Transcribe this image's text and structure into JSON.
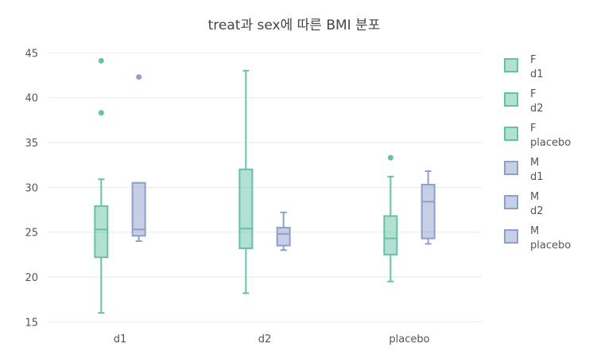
{
  "chart_data": {
    "type": "box",
    "title": "treat과 sex에 따른 BMI 분포",
    "xlabel": "",
    "ylabel": "",
    "categories": [
      "d1",
      "d2",
      "placebo"
    ],
    "ylim": [
      14.5,
      46
    ],
    "yticks": [
      15,
      20,
      25,
      30,
      35,
      40,
      45
    ],
    "grid": true,
    "legend_position": "right",
    "series": [
      {
        "name": "F",
        "category": "d1",
        "group": "F",
        "color": "#66c2a5",
        "min": 16.0,
        "q1": 22.2,
        "median": 25.3,
        "q3": 27.9,
        "max": 30.9,
        "outliers": [
          38.3,
          44.1
        ]
      },
      {
        "name": "F",
        "category": "d2",
        "group": "F",
        "color": "#66c2a5",
        "min": 18.2,
        "q1": 23.2,
        "median": 25.4,
        "q3": 32.0,
        "max": 43.0,
        "outliers": []
      },
      {
        "name": "F",
        "category": "placebo",
        "group": "F",
        "color": "#66c2a5",
        "min": 19.5,
        "q1": 22.5,
        "median": 24.3,
        "q3": 26.8,
        "max": 31.2,
        "outliers": [
          33.3
        ]
      },
      {
        "name": "M",
        "category": "d1",
        "group": "M",
        "color": "#8da0cb",
        "min": 24.0,
        "q1": 24.6,
        "median": 25.3,
        "q3": 30.5,
        "max": 30.5,
        "outliers": [
          42.3
        ]
      },
      {
        "name": "M",
        "category": "d2",
        "group": "M",
        "color": "#8da0cb",
        "min": 23.0,
        "q1": 23.5,
        "median": 24.8,
        "q3": 25.5,
        "max": 27.2,
        "outliers": []
      },
      {
        "name": "M",
        "category": "placebo",
        "group": "M",
        "color": "#8da0cb",
        "min": 23.7,
        "q1": 24.3,
        "median": 28.4,
        "q3": 30.3,
        "max": 31.8,
        "outliers": []
      }
    ]
  }
}
